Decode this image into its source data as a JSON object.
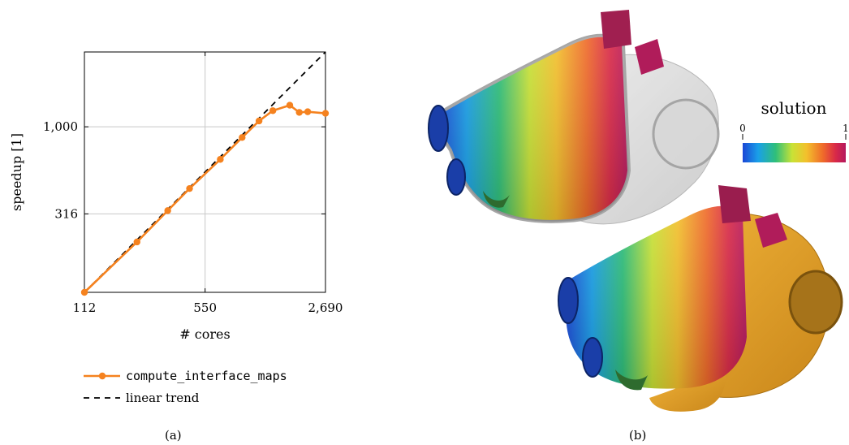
{
  "chart_data": {
    "type": "line",
    "xlabel": "# cores",
    "ylabel": "speedup [1]",
    "x_scale": "log",
    "y_scale": "log",
    "xlim": [
      112,
      2690
    ],
    "ylim": [
      112,
      2690
    ],
    "x_ticks": [
      112,
      550,
      2690
    ],
    "x_tick_labels": [
      "112",
      "550",
      "2,690"
    ],
    "y_ticks": [
      316,
      1000
    ],
    "y_tick_labels": [
      "316",
      "1,000"
    ],
    "grid": true,
    "legend_position": "below",
    "series": [
      {
        "name": "compute_interface_maps",
        "color": "#f5821f",
        "style": "solid-marker",
        "x": [
          112,
          224,
          336,
          448,
          672,
          896,
          1120,
          1344,
          1680,
          1904,
          2128,
          2690
        ],
        "y": [
          112,
          218,
          330,
          442,
          650,
          868,
          1080,
          1238,
          1330,
          1210,
          1220,
          1195
        ]
      },
      {
        "name": "linear trend",
        "color": "#000000",
        "style": "dashed",
        "x": [
          112,
          2690
        ],
        "y": [
          112,
          2690
        ]
      }
    ]
  },
  "captions": {
    "a": "(a)",
    "b": "(b)"
  },
  "colorbar": {
    "title": "solution",
    "min_label": "0",
    "max_label": "1"
  },
  "colors": {
    "series": "#f5821f",
    "render_solid": "#e8a52a",
    "ghost": "#c8c8c8"
  }
}
